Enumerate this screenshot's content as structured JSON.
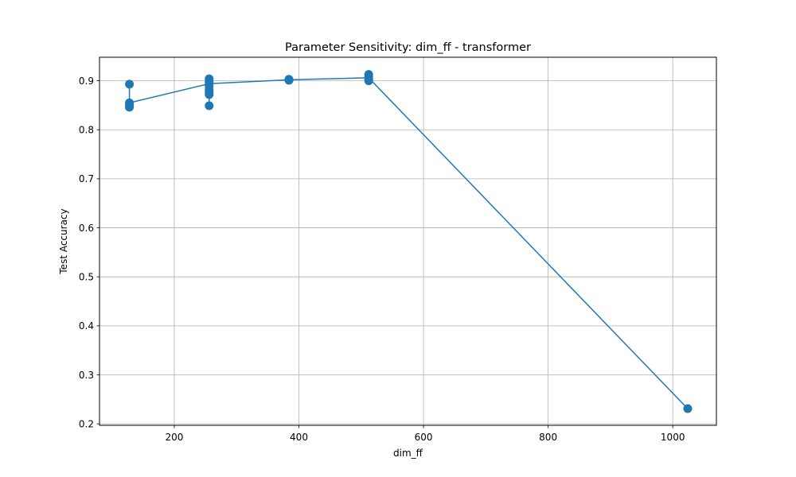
{
  "chart_data": {
    "type": "line",
    "title": "Parameter Sensitivity: dim_ff - transformer",
    "xlabel": "dim_ff",
    "ylabel": "Test Accuracy",
    "xlim": [
      80,
      1070
    ],
    "ylim": [
      0.197,
      0.948
    ],
    "x_ticks": [
      200,
      400,
      600,
      800,
      1000
    ],
    "y_ticks": [
      0.2,
      0.3,
      0.4,
      0.5,
      0.6,
      0.7,
      0.8,
      0.9
    ],
    "grid": true,
    "color": "#1f77b4",
    "line": {
      "x": [
        128,
        256,
        384,
        512,
        1024
      ],
      "y": [
        0.855,
        0.894,
        0.902,
        0.906,
        0.231
      ]
    },
    "points": {
      "x": [
        128,
        128,
        128,
        128,
        256,
        256,
        256,
        256,
        256,
        256,
        256,
        256,
        384,
        384,
        384,
        512,
        512,
        512,
        512,
        1024
      ],
      "y": [
        0.893,
        0.855,
        0.85,
        0.846,
        0.904,
        0.901,
        0.896,
        0.89,
        0.882,
        0.876,
        0.872,
        0.849,
        0.903,
        0.902,
        0.901,
        0.913,
        0.908,
        0.903,
        0.9,
        0.231
      ]
    }
  }
}
